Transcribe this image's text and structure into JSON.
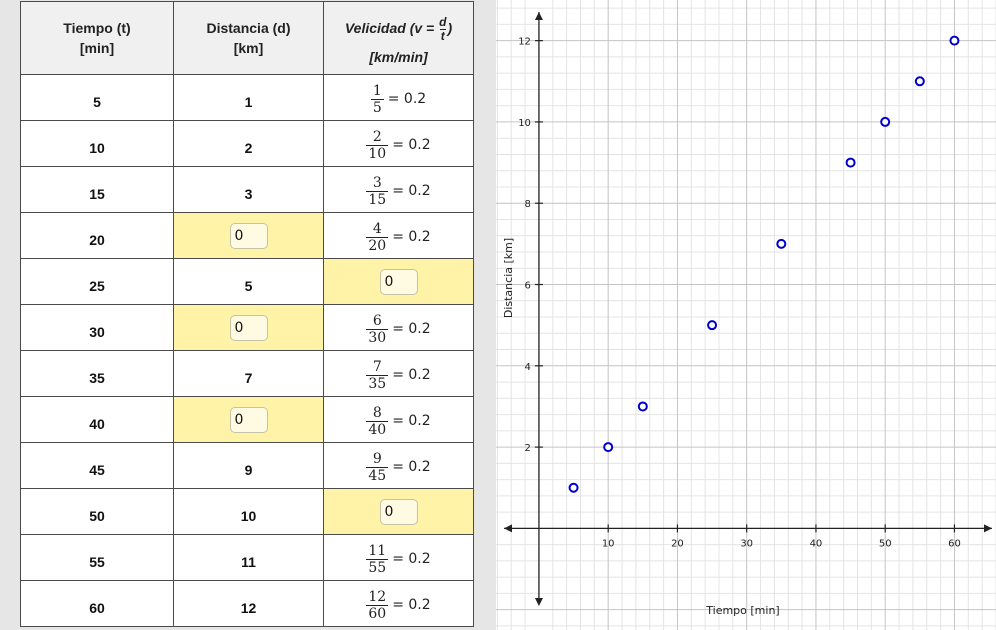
{
  "table": {
    "headers": {
      "time_line1": "Tiempo (t)",
      "time_line2": "[min]",
      "dist_line1": "Distancia (d)",
      "dist_line2": "[km]",
      "vel_prefix": "Velicidad (v =",
      "vel_num": "d",
      "vel_den": "t",
      "vel_suffix": ")",
      "vel_unit": "[km/min]"
    },
    "rows": [
      {
        "time": "5",
        "dist": "1",
        "dist_input": false,
        "vel_num": "1",
        "vel_den": "5",
        "vel_eq": "= 0.2",
        "vel_input": false
      },
      {
        "time": "10",
        "dist": "2",
        "dist_input": false,
        "vel_num": "2",
        "vel_den": "10",
        "vel_eq": "= 0.2",
        "vel_input": false
      },
      {
        "time": "15",
        "dist": "3",
        "dist_input": false,
        "vel_num": "3",
        "vel_den": "15",
        "vel_eq": "= 0.2",
        "vel_input": false
      },
      {
        "time": "20",
        "dist": "0",
        "dist_input": true,
        "vel_num": "4",
        "vel_den": "20",
        "vel_eq": "= 0.2",
        "vel_input": false
      },
      {
        "time": "25",
        "dist": "5",
        "dist_input": false,
        "vel": "0",
        "vel_input": true
      },
      {
        "time": "30",
        "dist": "0",
        "dist_input": true,
        "vel_num": "6",
        "vel_den": "30",
        "vel_eq": "= 0.2",
        "vel_input": false
      },
      {
        "time": "35",
        "dist": "7",
        "dist_input": false,
        "vel_num": "7",
        "vel_den": "35",
        "vel_eq": "= 0.2",
        "vel_input": false
      },
      {
        "time": "40",
        "dist": "0",
        "dist_input": true,
        "vel_num": "8",
        "vel_den": "40",
        "vel_eq": "= 0.2",
        "vel_input": false
      },
      {
        "time": "45",
        "dist": "9",
        "dist_input": false,
        "vel_num": "9",
        "vel_den": "45",
        "vel_eq": "= 0.2",
        "vel_input": false
      },
      {
        "time": "50",
        "dist": "10",
        "dist_input": false,
        "vel": "0",
        "vel_input": true
      },
      {
        "time": "55",
        "dist": "11",
        "dist_input": false,
        "vel_num": "11",
        "vel_den": "55",
        "vel_eq": "= 0.2",
        "vel_input": false
      },
      {
        "time": "60",
        "dist": "12",
        "dist_input": false,
        "vel_num": "12",
        "vel_den": "60",
        "vel_eq": "= 0.2",
        "vel_input": false
      }
    ]
  },
  "chart_data": {
    "type": "scatter",
    "x": [
      5,
      10,
      15,
      25,
      35,
      45,
      50,
      55,
      60
    ],
    "y": [
      1,
      2,
      3,
      5,
      7,
      9,
      10,
      11,
      12
    ],
    "xlabel": "Tiempo [min]",
    "ylabel": "Distancia  [km]",
    "xlim": [
      -6.2,
      66
    ],
    "ylim": [
      -2.5,
      13
    ],
    "xticks": [
      10,
      20,
      30,
      40,
      50,
      60
    ],
    "yticks": [
      2,
      4,
      6,
      8,
      10,
      12
    ],
    "grid": true,
    "marker_color": "#0000cc"
  },
  "colors": {
    "input_cell_bg": "#fff3a8",
    "grid_minor": "#e4e4e4",
    "grid_major": "#c4c4c4",
    "axis": "#222222",
    "panel_bg": "#e6e6e6"
  }
}
